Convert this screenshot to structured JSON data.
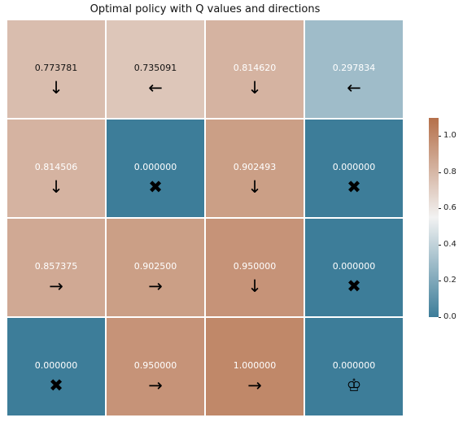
{
  "chart_data": {
    "type": "heatmap",
    "title": "Optimal policy with Q values and directions",
    "rows": 4,
    "cols": 4,
    "values": [
      [
        "0.773781",
        "0.735091",
        "0.814620",
        "0.297834"
      ],
      [
        "0.814506",
        "0.000000",
        "0.902493",
        "0.000000"
      ],
      [
        "0.857375",
        "0.902500",
        "0.950000",
        "0.000000"
      ],
      [
        "0.000000",
        "0.950000",
        "1.000000",
        "0.000000"
      ]
    ],
    "directions": [
      [
        "↓",
        "←",
        "↓",
        "←"
      ],
      [
        "↓",
        "✖",
        "↓",
        "✖"
      ],
      [
        "→",
        "→",
        "↓",
        "✖"
      ],
      [
        "✖",
        "→",
        "→",
        "♔"
      ]
    ],
    "colorbar": {
      "min": 0.0,
      "max": 1.1,
      "ticks": [
        "0.0",
        "0.2",
        "0.4",
        "0.6",
        "0.8",
        "1.0"
      ],
      "colors": {
        "low": "#3d7d99",
        "mid": "#f2f2f2",
        "high": "#b5704a"
      }
    },
    "grid": false,
    "legend": "right"
  }
}
